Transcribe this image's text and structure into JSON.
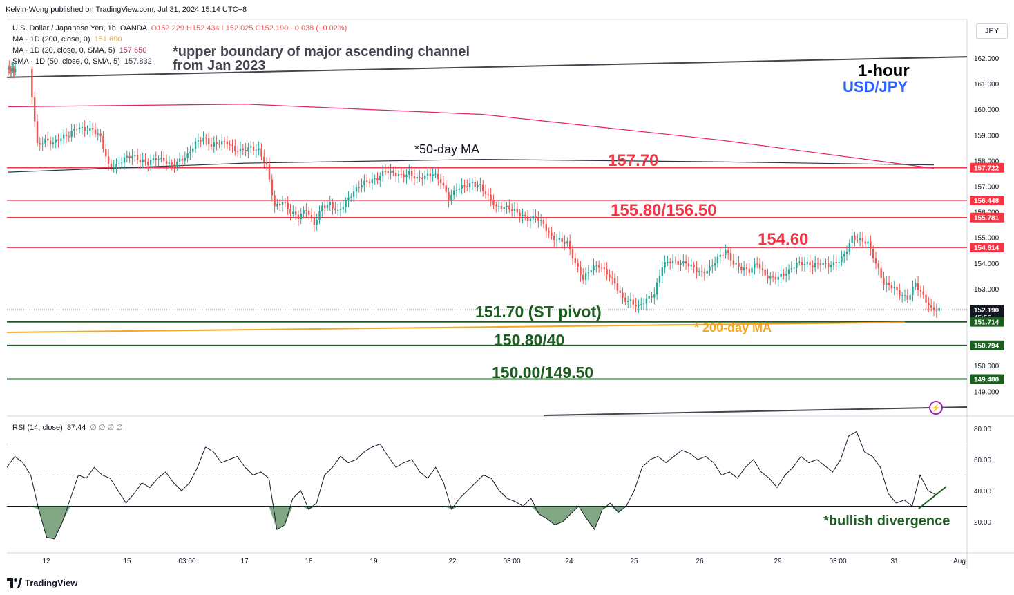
{
  "header": {
    "published": "Kelvin-Wong published on TradingView.com, Jul 31, 2024 15:14 UTC+8",
    "currency_button": "JPY"
  },
  "legend": {
    "symbol": "U.S. Dollar / Japanese Yen, 1h, OANDA",
    "ohlc": "O152.229 H152.434 L152.025 C152.190 −0.038 (−0.02%)",
    "ma200_label": "MA · 1D (200, close, 0)",
    "ma200_value": "151.690",
    "ma20_label": "MA · 1D (20, close, 0, SMA, 5)",
    "ma20_value": "157.650",
    "sma50_label": "SMA · 1D (50, close, 0, SMA, 5)",
    "sma50_value": "157.832",
    "rsi_label": "RSI (14, close)",
    "rsi_value": "37.44",
    "rsi_extra": "∅ ∅ ∅ ∅"
  },
  "annotations": {
    "channel_note_line1": "*upper boundary of major ascending channel",
    "channel_note_line2": "from Jan 2023",
    "timeframe": "1-hour",
    "pair": "USD/JPY",
    "ma50_note": "*50-day MA",
    "ma200_note": "* 200-day MA",
    "level_1": "157.70",
    "level_2": "155.80/156.50",
    "level_3": "154.60",
    "level_4": "151.70 (ST pivot)",
    "level_5": "150.80/40",
    "level_6": "150.00/149.50",
    "rsi_note": "*bullish divergence"
  },
  "footer": {
    "brand": "TradingView"
  },
  "colors": {
    "up": "#26a69a",
    "down": "#ef5350",
    "resistance": "#f23645",
    "support": "#1b5e20",
    "ma200": "#f5a623",
    "ma20": "#e91e63",
    "ma50": "#2a3646"
  },
  "chart_data": [
    {
      "type": "candlestick",
      "title": "U.S. Dollar / Japanese Yen, 1h, OANDA",
      "x_tick_labels": [
        "12",
        "15",
        "03:00",
        "17",
        "18",
        "19",
        "22",
        "03:00",
        "24",
        "25",
        "26",
        "29",
        "03:00",
        "31",
        "Aug"
      ],
      "y_tick_labels": [
        "162.000",
        "161.000",
        "160.000",
        "159.000",
        "158.000",
        "157.000",
        "156.000",
        "155.000",
        "154.000",
        "153.000",
        "150.000",
        "149.000"
      ],
      "ylim": [
        148.0,
        163.0
      ],
      "price_labels": [
        {
          "value": "157.722",
          "color": "#f23645"
        },
        {
          "value": "156.448",
          "color": "#f23645"
        },
        {
          "value": "155.781",
          "color": "#f23645"
        },
        {
          "value": "154.614",
          "color": "#f23645"
        },
        {
          "value": "152.190",
          "color": "#131722",
          "sub": "45:55"
        },
        {
          "value": "151.714",
          "color": "#1b5e20"
        },
        {
          "value": "150.794",
          "color": "#1b5e20"
        },
        {
          "value": "149.480",
          "color": "#1b5e20"
        }
      ],
      "horizontal_levels": [
        {
          "price": 157.72,
          "kind": "resistance"
        },
        {
          "price": 156.45,
          "kind": "resistance"
        },
        {
          "price": 155.78,
          "kind": "resistance"
        },
        {
          "price": 154.61,
          "kind": "resistance"
        },
        {
          "price": 151.71,
          "kind": "support"
        },
        {
          "price": 150.79,
          "kind": "support"
        },
        {
          "price": 149.48,
          "kind": "support"
        }
      ],
      "close_path": [
        [
          0,
          161.6
        ],
        [
          3,
          161.5
        ],
        [
          4,
          158.6
        ],
        [
          5,
          158.8
        ],
        [
          6,
          158.7
        ],
        [
          7,
          158.9
        ],
        [
          8,
          159.0
        ],
        [
          9,
          159.3
        ],
        [
          10,
          159.2
        ],
        [
          11,
          159.2
        ],
        [
          12,
          158.9
        ],
        [
          13,
          157.8
        ],
        [
          14,
          157.8
        ],
        [
          15,
          158.1
        ],
        [
          16,
          158.2
        ],
        [
          17,
          158.0
        ],
        [
          18,
          157.9
        ],
        [
          19,
          158.1
        ],
        [
          20,
          158.0
        ],
        [
          21,
          157.8
        ],
        [
          22,
          158.0
        ],
        [
          23,
          158.2
        ],
        [
          24,
          158.7
        ],
        [
          25,
          158.9
        ],
        [
          26,
          158.6
        ],
        [
          27,
          158.7
        ],
        [
          28,
          158.7
        ],
        [
          29,
          158.4
        ],
        [
          30,
          158.4
        ],
        [
          31,
          158.5
        ],
        [
          32,
          158.4
        ],
        [
          33,
          157.8
        ],
        [
          34,
          156.2
        ],
        [
          35,
          156.4
        ],
        [
          36,
          156.0
        ],
        [
          37,
          155.8
        ],
        [
          38,
          156.1
        ],
        [
          39,
          155.5
        ],
        [
          40,
          156.2
        ],
        [
          41,
          156.3
        ],
        [
          42,
          156.0
        ],
        [
          43,
          156.4
        ],
        [
          44,
          156.8
        ],
        [
          45,
          157.1
        ],
        [
          46,
          157.2
        ],
        [
          47,
          157.3
        ],
        [
          48,
          157.6
        ],
        [
          49,
          157.5
        ],
        [
          50,
          157.4
        ],
        [
          51,
          157.5
        ],
        [
          52,
          157.3
        ],
        [
          53,
          157.4
        ],
        [
          54,
          157.5
        ],
        [
          55,
          157.2
        ],
        [
          56,
          156.5
        ],
        [
          57,
          156.9
        ],
        [
          58,
          157.0
        ],
        [
          59,
          157.1
        ],
        [
          60,
          157.0
        ],
        [
          61,
          156.6
        ],
        [
          62,
          156.2
        ],
        [
          63,
          156.2
        ],
        [
          64,
          156.1
        ],
        [
          65,
          155.9
        ],
        [
          66,
          155.7
        ],
        [
          67,
          155.8
        ],
        [
          68,
          155.5
        ],
        [
          69,
          155.0
        ],
        [
          70,
          154.9
        ],
        [
          71,
          154.8
        ],
        [
          72,
          154.0
        ],
        [
          73,
          153.4
        ],
        [
          74,
          153.8
        ],
        [
          75,
          153.9
        ],
        [
          76,
          153.6
        ],
        [
          77,
          153.2
        ],
        [
          78,
          152.6
        ],
        [
          79,
          152.5
        ],
        [
          80,
          152.3
        ],
        [
          81,
          152.6
        ],
        [
          82,
          152.8
        ],
        [
          83,
          153.9
        ],
        [
          84,
          154.1
        ],
        [
          85,
          154.0
        ],
        [
          86,
          154.0
        ],
        [
          87,
          153.8
        ],
        [
          88,
          153.6
        ],
        [
          89,
          153.8
        ],
        [
          90,
          154.2
        ],
        [
          91,
          154.5
        ],
        [
          92,
          154.0
        ],
        [
          93,
          153.8
        ],
        [
          94,
          153.7
        ],
        [
          95,
          154.0
        ],
        [
          96,
          153.5
        ],
        [
          97,
          153.4
        ],
        [
          98,
          153.5
        ],
        [
          99,
          153.7
        ],
        [
          100,
          154.0
        ],
        [
          101,
          154.0
        ],
        [
          102,
          153.9
        ],
        [
          103,
          154.0
        ],
        [
          104,
          153.9
        ],
        [
          105,
          154.0
        ],
        [
          106,
          154.3
        ],
        [
          107,
          155.0
        ],
        [
          108,
          154.9
        ],
        [
          109,
          154.8
        ],
        [
          110,
          154.0
        ],
        [
          111,
          153.2
        ],
        [
          112,
          153.1
        ],
        [
          113,
          152.8
        ],
        [
          114,
          152.6
        ],
        [
          115,
          153.2
        ],
        [
          116,
          152.7
        ],
        [
          117,
          152.2
        ]
      ],
      "moving_averages": [
        {
          "name": "MA · 1D (200, close, 0)",
          "from": 151.3,
          "to": 151.69
        },
        {
          "name": "MA · 1D (20, close, 0, SMA, 5)",
          "points": [
            [
              0,
              160.1
            ],
            [
              30,
              160.2
            ],
            [
              60,
              159.8
            ],
            [
              90,
              158.8
            ],
            [
              117,
              157.7
            ]
          ]
        },
        {
          "name": "SMA · 1D (50, close, 0, SMA, 5)",
          "points": [
            [
              0,
              157.55
            ],
            [
              30,
              157.9
            ],
            [
              60,
              158.05
            ],
            [
              90,
              157.95
            ],
            [
              117,
              157.83
            ]
          ]
        }
      ],
      "channel_line": {
        "from": 161.25,
        "to": 162.05
      }
    },
    {
      "type": "line",
      "title": "RSI (14, close)",
      "y_tick_labels": [
        "80.00",
        "60.00",
        "40.00",
        "20.00"
      ],
      "ylim": [
        0,
        85
      ],
      "bands": [
        30,
        50,
        70
      ],
      "values": [
        55,
        62,
        58,
        50,
        28,
        10,
        9,
        20,
        35,
        50,
        48,
        55,
        50,
        48,
        40,
        32,
        38,
        45,
        42,
        48,
        52,
        45,
        40,
        45,
        55,
        68,
        65,
        58,
        60,
        62,
        55,
        50,
        52,
        48,
        15,
        18,
        35,
        40,
        28,
        32,
        50,
        55,
        62,
        58,
        60,
        65,
        68,
        70,
        62,
        55,
        58,
        60,
        52,
        48,
        55,
        45,
        28,
        35,
        40,
        45,
        50,
        48,
        40,
        35,
        33,
        30,
        35,
        25,
        22,
        18,
        20,
        25,
        30,
        22,
        15,
        28,
        32,
        26,
        30,
        40,
        55,
        60,
        62,
        58,
        62,
        66,
        64,
        60,
        62,
        58,
        50,
        52,
        48,
        55,
        60,
        52,
        48,
        42,
        50,
        55,
        62,
        58,
        60,
        56,
        52,
        60,
        75,
        78,
        65,
        62,
        55,
        38,
        32,
        34,
        30,
        50,
        40,
        37.44
      ]
    }
  ]
}
